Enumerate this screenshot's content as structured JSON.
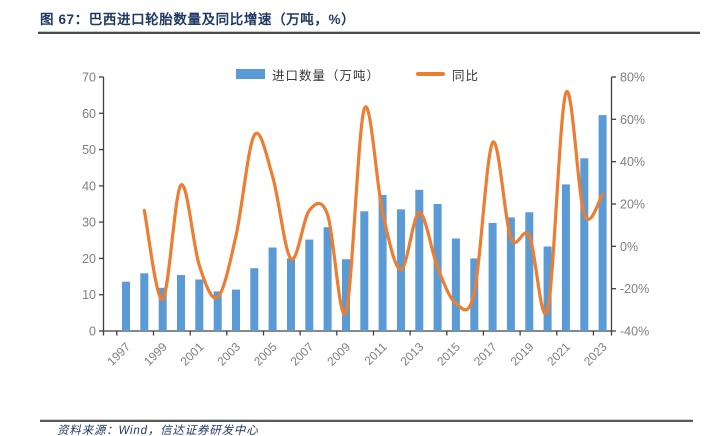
{
  "figure": {
    "title": "图 67：巴西进口轮胎数量及同比增速（万吨，%）",
    "source": "资料来源：Wind，信达证券研发中心"
  },
  "colors": {
    "bar": "#5B9BD5",
    "line": "#ED7D31",
    "title_text": "#1F3864",
    "axis_text": "#7F7F7F",
    "axis_line": "#404040"
  },
  "chart_data": {
    "type": "combo-bar-line",
    "title": "巴西进口轮胎数量及同比增速（万吨，%）",
    "grid": false,
    "legend_position": "top-center",
    "categories": [
      "1997",
      "1998",
      "1999",
      "2000",
      "2001",
      "2002",
      "2003",
      "2004",
      "2005",
      "2006",
      "2007",
      "2008",
      "2009",
      "2010",
      "2011",
      "2012",
      "2013",
      "2014",
      "2015",
      "2016",
      "2017",
      "2018",
      "2019",
      "2020",
      "2021",
      "2022",
      "2023"
    ],
    "series": [
      {
        "name": "进口数量（万吨）",
        "type": "bar",
        "axis": "left",
        "color": "#5B9BD5",
        "values": [
          13.6,
          15.9,
          11.9,
          15.4,
          14.2,
          10.9,
          11.4,
          17.3,
          23,
          20,
          25.2,
          28.6,
          19.8,
          33,
          37.5,
          33.5,
          38.9,
          35,
          25.5,
          20,
          29.8,
          31.3,
          32.7,
          23.3,
          40.4,
          47.6,
          59.5
        ]
      },
      {
        "name": "同比",
        "type": "line",
        "axis": "right",
        "color": "#ED7D31",
        "values": [
          null,
          17,
          -25,
          29,
          -9,
          -24,
          5,
          52.5,
          33,
          -6,
          17,
          15,
          -31,
          65,
          16,
          -11,
          16,
          -10,
          -27,
          -22,
          49,
          4,
          5,
          -30,
          72.5,
          15,
          24.5
        ]
      }
    ],
    "left_axis": {
      "min": 0,
      "max": 70,
      "step": 10,
      "labels": [
        "0",
        "10",
        "20",
        "30",
        "40",
        "50",
        "60",
        "70"
      ]
    },
    "right_axis": {
      "min": -40,
      "max": 80,
      "step": 20,
      "suffix": "%",
      "labels": [
        "-40%",
        "-20%",
        "0%",
        "20%",
        "40%",
        "60%",
        "80%"
      ]
    },
    "x_tick_labels": [
      "1997",
      "1999",
      "2001",
      "2003",
      "2005",
      "2007",
      "2009",
      "2011",
      "2013",
      "2015",
      "2017",
      "2019",
      "2021",
      "2023"
    ]
  }
}
